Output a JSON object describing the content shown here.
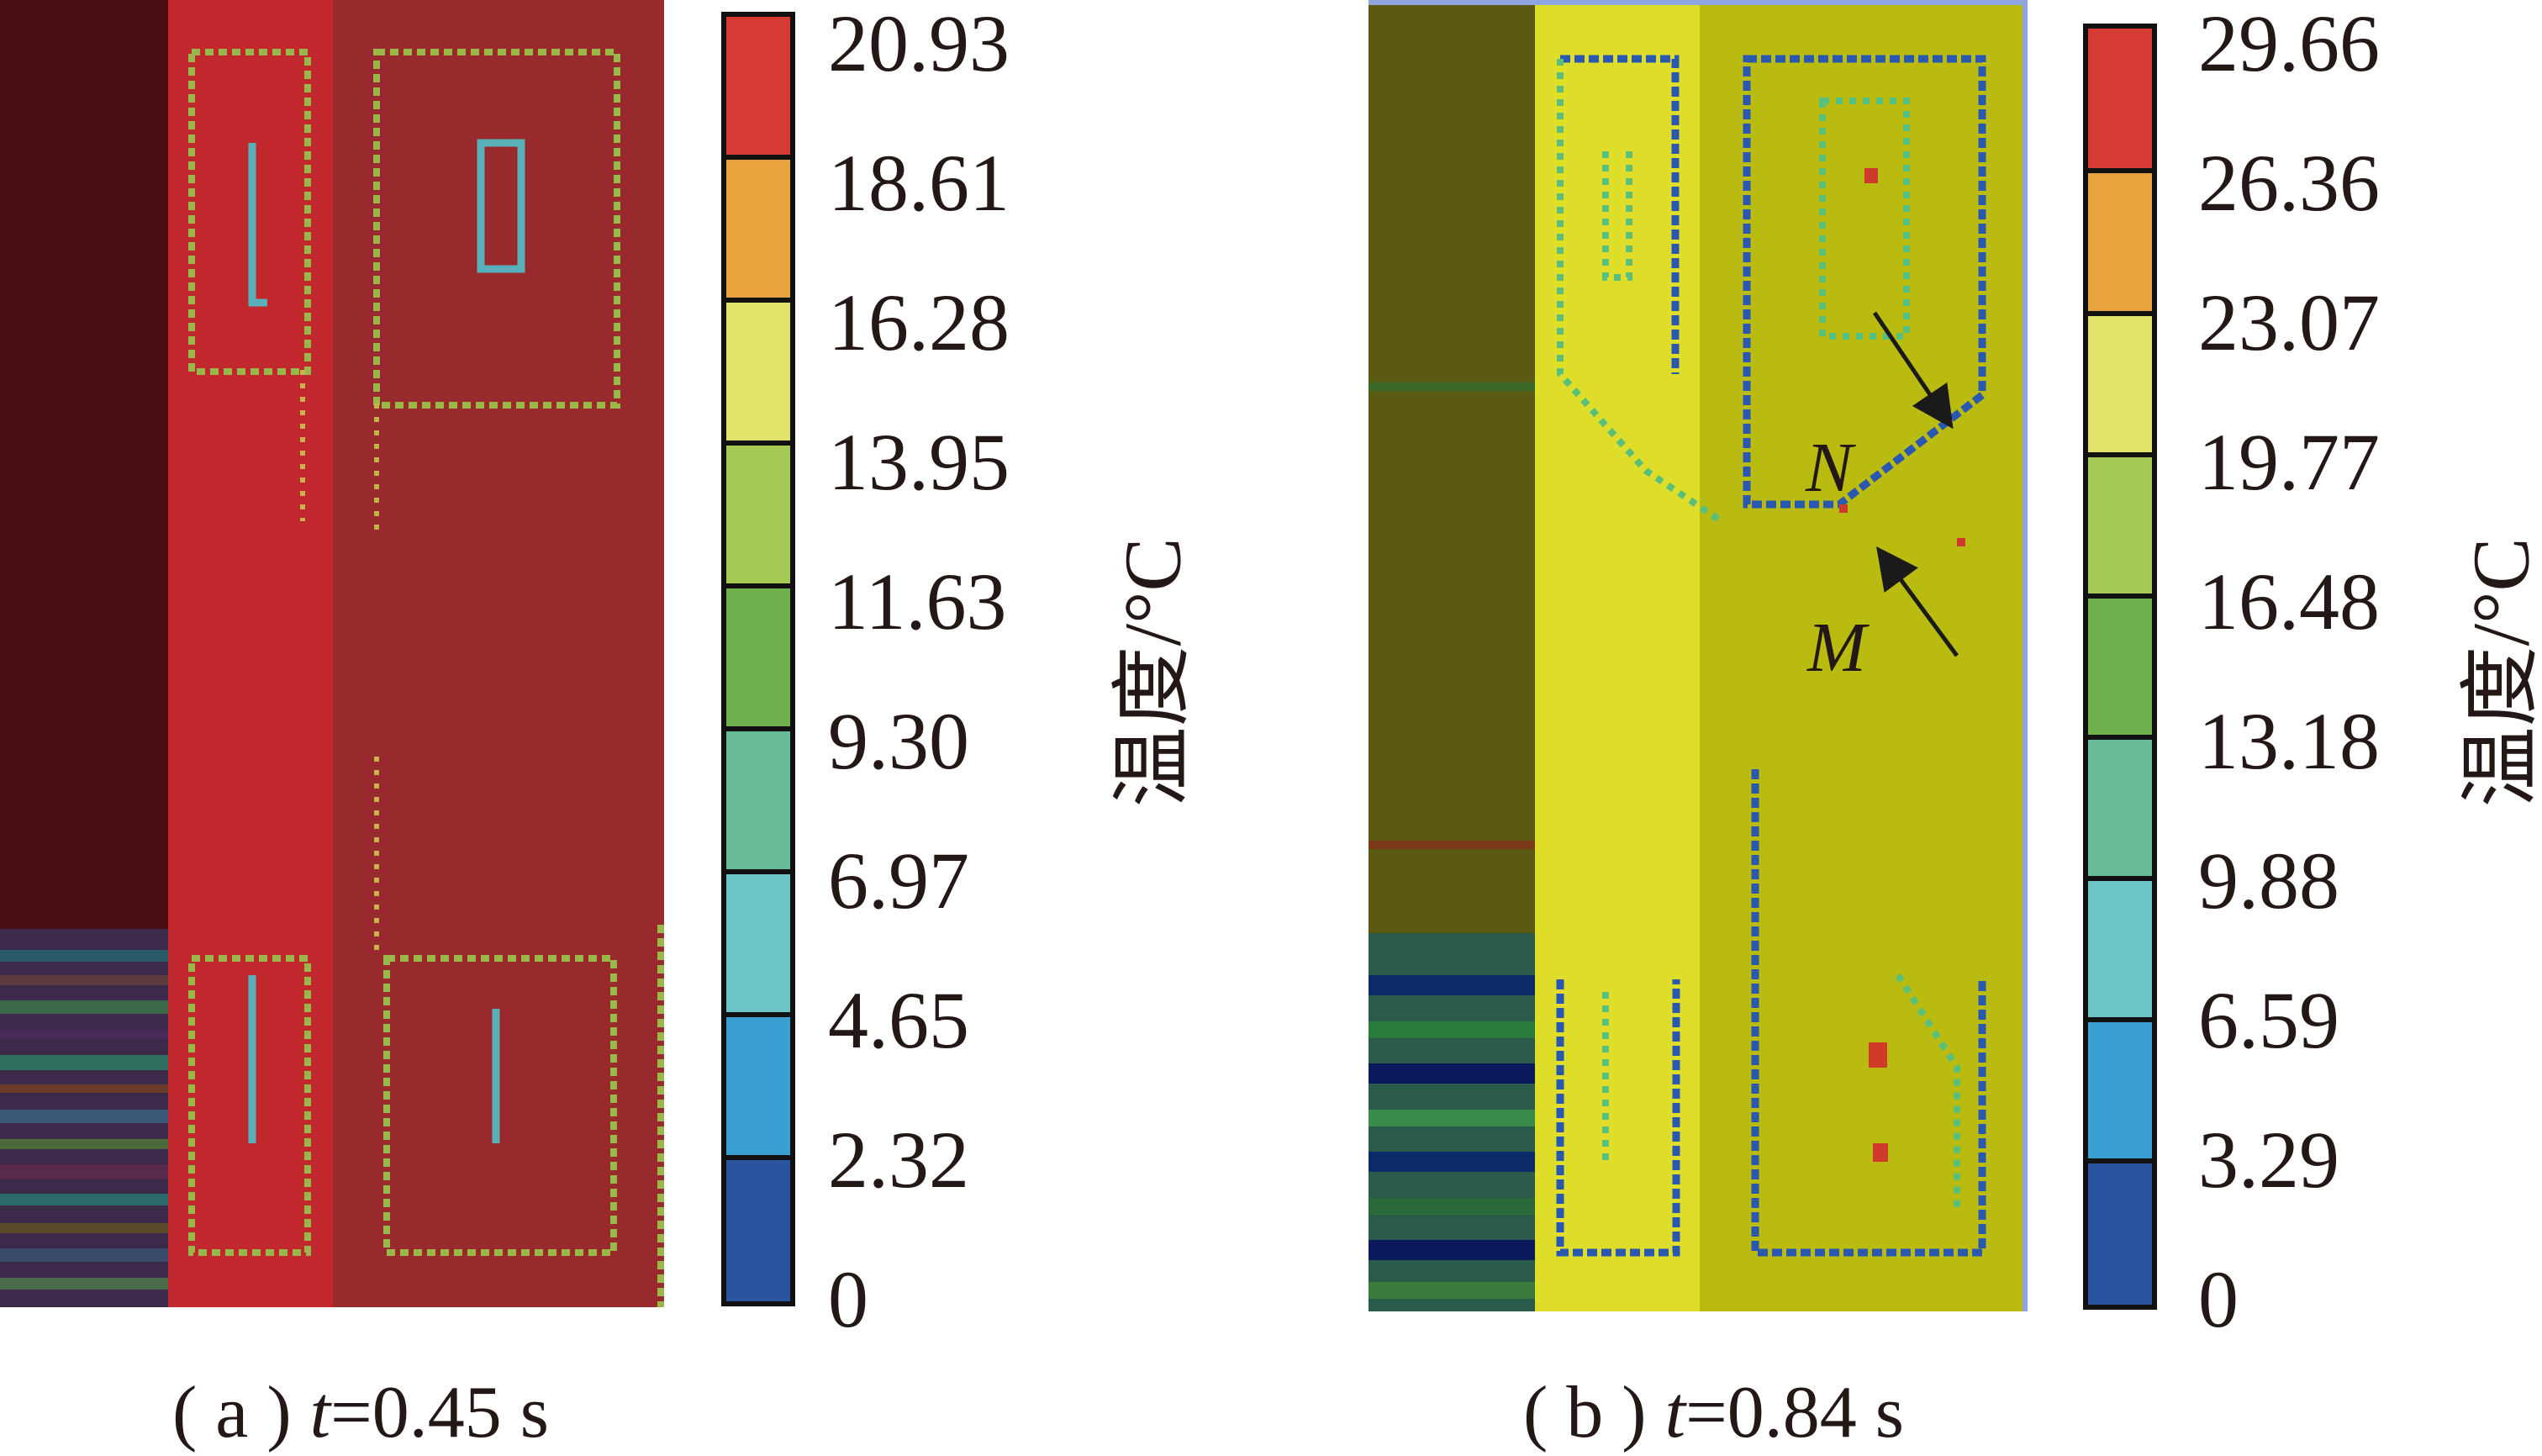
{
  "colorbar_title": "温度/°C",
  "panels": [
    {
      "id": "a",
      "caption_prefix": "( a ) ",
      "caption_var": "t",
      "caption_suffix": "=0.45 s",
      "colorbar_labels": [
        "20.93",
        "18.61",
        "16.28",
        "13.95",
        "11.63",
        "9.30",
        "6.97",
        "4.65",
        "2.32",
        "0"
      ],
      "background_colors": {
        "left_strip": "#4a0e14",
        "mid_strip": "#c0282e",
        "right_region": "#982a2e"
      }
    },
    {
      "id": "b",
      "caption_prefix": "( b ) ",
      "caption_var": "t",
      "caption_suffix": "=0.84 s",
      "colorbar_labels": [
        "29.66",
        "26.36",
        "23.07",
        "19.77",
        "16.48",
        "13.18",
        "9.88",
        "6.59",
        "3.29",
        "0"
      ],
      "background_colors": {
        "left_strip": "#5b5a12",
        "mid_strip": "#dede2a",
        "right_region": "#b9bb10"
      },
      "annotations": [
        {
          "label": "N"
        },
        {
          "label": "M"
        }
      ]
    }
  ],
  "colorbar_colors": [
    "#d63a34",
    "#e8a33e",
    "#e2e26a",
    "#a6c956",
    "#6eb04c",
    "#67bb96",
    "#6bc4c6",
    "#3a9fd2",
    "#2a54a0"
  ]
}
